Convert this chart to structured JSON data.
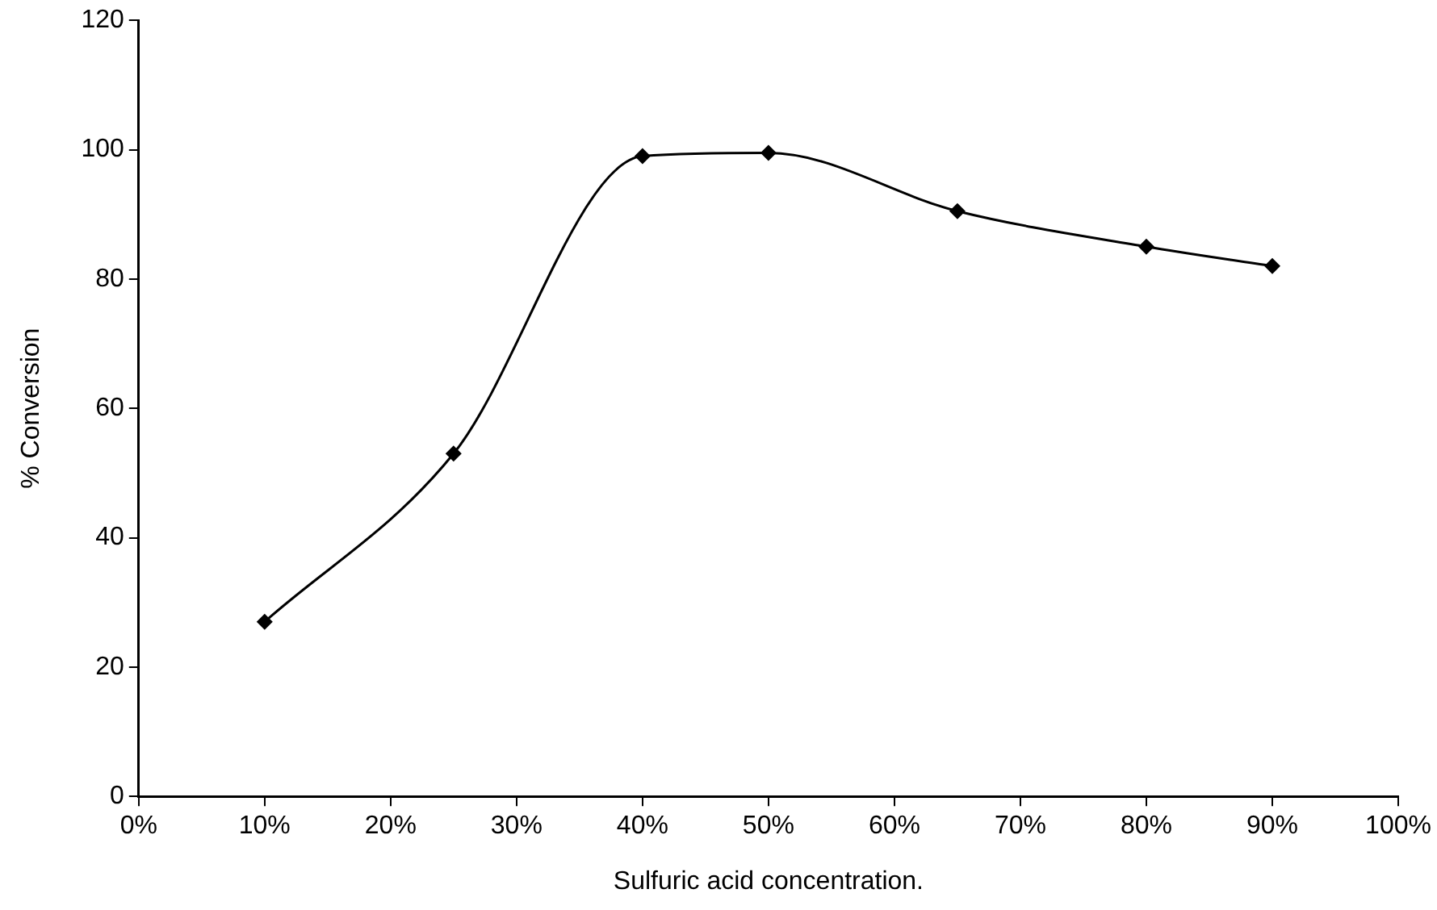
{
  "chart_data": {
    "type": "line",
    "xlabel": "Sulfuric acid concentration.",
    "ylabel": "% Conversion",
    "x": [
      10,
      25,
      40,
      50,
      65,
      80,
      90
    ],
    "series": [
      {
        "color": "#000000",
        "values": [
          27,
          53,
          99,
          99.5,
          90.5,
          85,
          82
        ]
      }
    ],
    "xlim": [
      0,
      100
    ],
    "xticks": [
      {
        "value": 0,
        "label": "0%"
      },
      {
        "value": 10,
        "label": "10%"
      },
      {
        "value": 20,
        "label": "20%"
      },
      {
        "value": 30,
        "label": "30%"
      },
      {
        "value": 40,
        "label": "40%"
      },
      {
        "value": 50,
        "label": "50%"
      },
      {
        "value": 60,
        "label": "60%"
      },
      {
        "value": 70,
        "label": "70%"
      },
      {
        "value": 80,
        "label": "80%"
      },
      {
        "value": 90,
        "label": "90%"
      },
      {
        "value": 100,
        "label": "100%"
      }
    ],
    "ylim": [
      0,
      120
    ],
    "yticks": [
      0,
      20,
      40,
      60,
      80,
      100,
      120
    ],
    "grid": false,
    "legend": false,
    "marker": "diamond",
    "line_style": "solid"
  }
}
